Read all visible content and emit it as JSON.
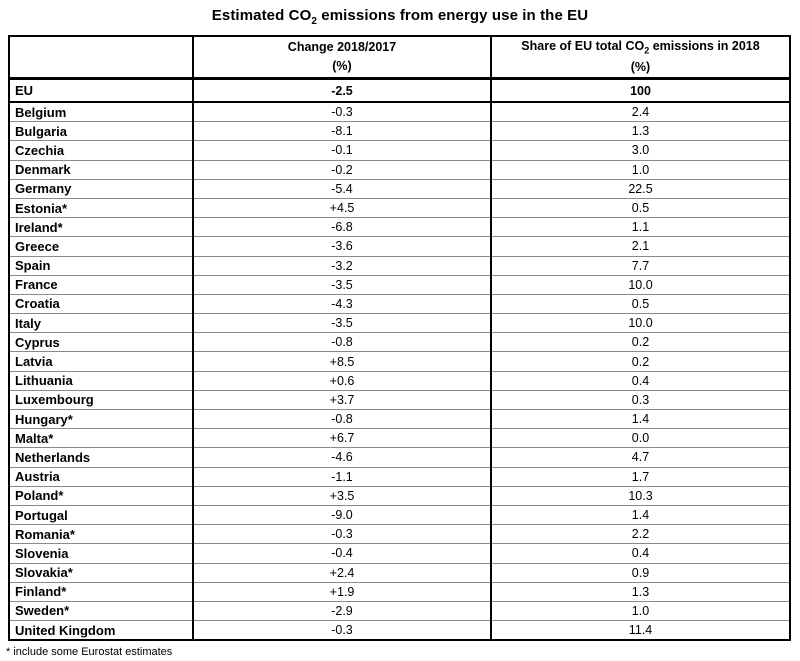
{
  "title": {
    "pre": "Estimated CO",
    "sub": "2",
    "post": " emissions from energy use in the EU"
  },
  "table": {
    "headers": {
      "country": "",
      "change_line1": "Change 2018/2017",
      "change_line2": "(%)",
      "share_line1_pre": "Share of EU total CO",
      "share_line1_sub": "2",
      "share_line1_post": " emissions in 2018",
      "share_line2": "(%)"
    },
    "rows": [
      {
        "country": "EU",
        "change": "-2.5",
        "share": "100",
        "emphasis": true
      },
      {
        "country": "Belgium",
        "change": "-0.3",
        "share": "2.4"
      },
      {
        "country": "Bulgaria",
        "change": "-8.1",
        "share": "1.3"
      },
      {
        "country": "Czechia",
        "change": "-0.1",
        "share": "3.0"
      },
      {
        "country": "Denmark",
        "change": "-0.2",
        "share": "1.0"
      },
      {
        "country": "Germany",
        "change": "-5.4",
        "share": "22.5"
      },
      {
        "country": "Estonia*",
        "change": "+4.5",
        "share": "0.5"
      },
      {
        "country": "Ireland*",
        "change": "-6.8",
        "share": "1.1"
      },
      {
        "country": "Greece",
        "change": "-3.6",
        "share": "2.1"
      },
      {
        "country": "Spain",
        "change": "-3.2",
        "share": "7.7"
      },
      {
        "country": "France",
        "change": "-3.5",
        "share": "10.0"
      },
      {
        "country": "Croatia",
        "change": "-4.3",
        "share": "0.5"
      },
      {
        "country": "Italy",
        "change": "-3.5",
        "share": "10.0"
      },
      {
        "country": "Cyprus",
        "change": "-0.8",
        "share": "0.2"
      },
      {
        "country": "Latvia",
        "change": "+8.5",
        "share": "0.2"
      },
      {
        "country": "Lithuania",
        "change": "+0.6",
        "share": "0.4"
      },
      {
        "country": "Luxembourg",
        "change": "+3.7",
        "share": "0.3"
      },
      {
        "country": "Hungary*",
        "change": "-0.8",
        "share": "1.4"
      },
      {
        "country": "Malta*",
        "change": "+6.7",
        "share": "0.0"
      },
      {
        "country": "Netherlands",
        "change": "-4.6",
        "share": "4.7"
      },
      {
        "country": "Austria",
        "change": "-1.1",
        "share": "1.7"
      },
      {
        "country": "Poland*",
        "change": "+3.5",
        "share": "10.3"
      },
      {
        "country": "Portugal",
        "change": "-9.0",
        "share": "1.4"
      },
      {
        "country": "Romania*",
        "change": "-0.3",
        "share": "2.2"
      },
      {
        "country": "Slovenia",
        "change": "-0.4",
        "share": "0.4"
      },
      {
        "country": "Slovakia*",
        "change": "+2.4",
        "share": "0.9"
      },
      {
        "country": "Finland*",
        "change": "+1.9",
        "share": "1.3"
      },
      {
        "country": "Sweden*",
        "change": "-2.9",
        "share": "1.0"
      },
      {
        "country": "United Kingdom",
        "change": "-0.3",
        "share": "11.4"
      }
    ]
  },
  "footnote": "* include some Eurostat estimates",
  "chart_data": {
    "type": "table",
    "title": "Estimated CO2 emissions from energy use in the EU",
    "columns": [
      "Country",
      "Change 2018/2017 (%)",
      "Share of EU total CO2 emissions in 2018 (%)"
    ],
    "rows": [
      [
        "EU",
        -2.5,
        100
      ],
      [
        "Belgium",
        -0.3,
        2.4
      ],
      [
        "Bulgaria",
        -8.1,
        1.3
      ],
      [
        "Czechia",
        -0.1,
        3.0
      ],
      [
        "Denmark",
        -0.2,
        1.0
      ],
      [
        "Germany",
        -5.4,
        22.5
      ],
      [
        "Estonia*",
        4.5,
        0.5
      ],
      [
        "Ireland*",
        -6.8,
        1.1
      ],
      [
        "Greece",
        -3.6,
        2.1
      ],
      [
        "Spain",
        -3.2,
        7.7
      ],
      [
        "France",
        -3.5,
        10.0
      ],
      [
        "Croatia",
        -4.3,
        0.5
      ],
      [
        "Italy",
        -3.5,
        10.0
      ],
      [
        "Cyprus",
        -0.8,
        0.2
      ],
      [
        "Latvia",
        8.5,
        0.2
      ],
      [
        "Lithuania",
        0.6,
        0.4
      ],
      [
        "Luxembourg",
        3.7,
        0.3
      ],
      [
        "Hungary*",
        -0.8,
        1.4
      ],
      [
        "Malta*",
        6.7,
        0.0
      ],
      [
        "Netherlands",
        -4.6,
        4.7
      ],
      [
        "Austria",
        -1.1,
        1.7
      ],
      [
        "Poland*",
        3.5,
        10.3
      ],
      [
        "Portugal",
        -9.0,
        1.4
      ],
      [
        "Romania*",
        -0.3,
        2.2
      ],
      [
        "Slovenia",
        -0.4,
        0.4
      ],
      [
        "Slovakia*",
        2.4,
        0.9
      ],
      [
        "Finland*",
        1.9,
        1.3
      ],
      [
        "Sweden*",
        -2.9,
        1.0
      ],
      [
        "United Kingdom",
        -0.3,
        11.4
      ]
    ],
    "footnote": "* include some Eurostat estimates"
  }
}
